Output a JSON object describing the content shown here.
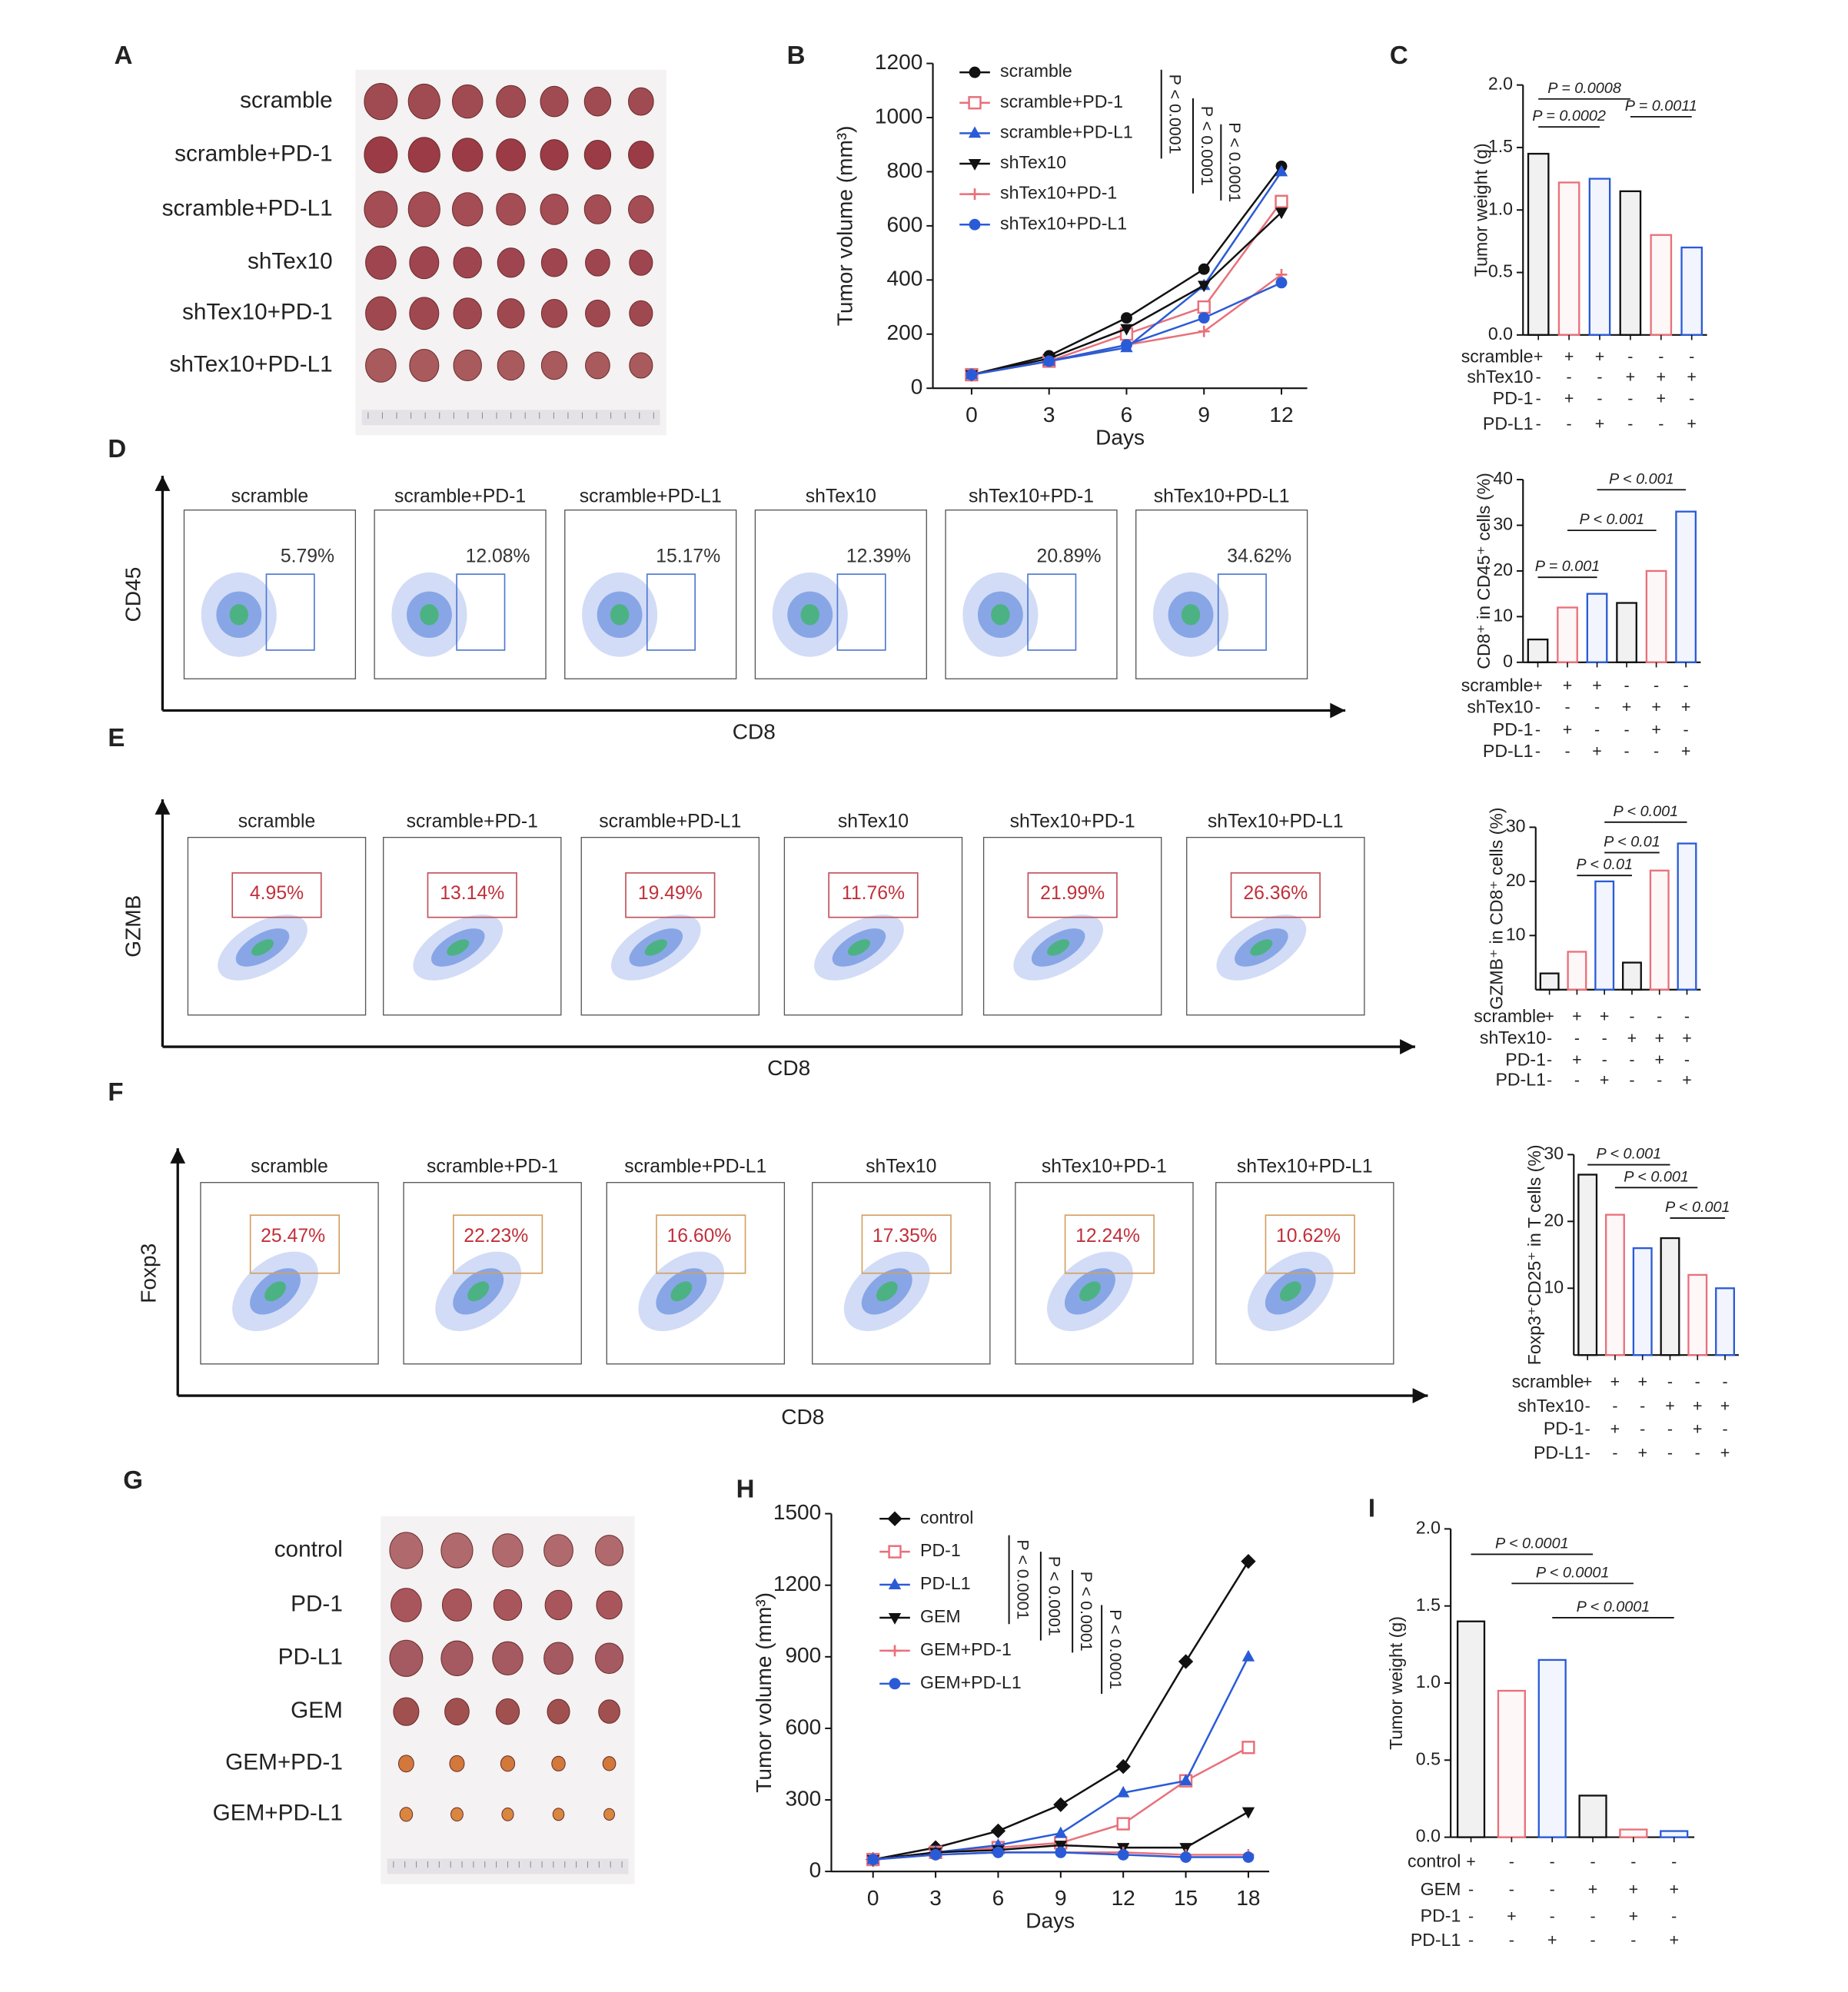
{
  "panel_labels": [
    "A",
    "B",
    "C",
    "D",
    "E",
    "F",
    "G",
    "H",
    "I"
  ],
  "photo_a": {
    "rows": [
      "scramble",
      "scramble+PD-1",
      "scramble+PD-L1",
      "shTex10",
      "shTex10+PD-1",
      "shTex10+PD-L1"
    ]
  },
  "photo_g": {
    "rows": [
      "control",
      "PD-1",
      "PD-L1",
      "GEM",
      "GEM+PD-1",
      "GEM+PD-L1"
    ]
  },
  "flows": [
    {
      "y_label": "CD45",
      "x_label": "CD8",
      "groups": [
        "scramble",
        "scramble+PD-1",
        "scramble+PD-L1",
        "shTex10",
        "shTex10+PD-1",
        "shTex10+PD-L1"
      ],
      "percents": [
        "5.79%",
        "12.08%",
        "15.17%",
        "12.39%",
        "20.89%",
        "34.62%"
      ]
    },
    {
      "y_label": "GZMB",
      "x_label": "CD8",
      "groups": [
        "scramble",
        "scramble+PD-1",
        "scramble+PD-L1",
        "shTex10",
        "shTex10+PD-1",
        "shTex10+PD-L1"
      ],
      "percents": [
        "4.95%",
        "13.14%",
        "19.49%",
        "11.76%",
        "21.99%",
        "26.36%"
      ]
    },
    {
      "y_label": "Foxp3",
      "x_label": "CD8",
      "groups": [
        "scramble",
        "scramble+PD-1",
        "scramble+PD-L1",
        "shTex10",
        "shTex10+PD-1",
        "shTex10+PD-L1"
      ],
      "percents": [
        "25.47%",
        "22.23%",
        "16.60%",
        "17.35%",
        "12.24%",
        "10.62%"
      ]
    }
  ],
  "chart_data": [
    {
      "type": "line",
      "x_label": "Days",
      "y_label": "Tumor volume (mm³)",
      "x": [
        0,
        3,
        6,
        9,
        12
      ],
      "xlim": [
        -1.5,
        13
      ],
      "xticks": [
        0,
        3,
        6,
        9,
        12
      ],
      "ylim": [
        0,
        1200
      ],
      "yticks": [
        0,
        200,
        400,
        600,
        800,
        1000,
        1200
      ],
      "series": [
        {
          "name": "scramble",
          "color": "#111111",
          "marker": "circle",
          "values": [
            50,
            120,
            260,
            440,
            820
          ]
        },
        {
          "name": "scramble+PD-1",
          "color": "#e8707a",
          "marker": "square",
          "values": [
            50,
            100,
            200,
            300,
            690
          ]
        },
        {
          "name": "scramble+PD-L1",
          "color": "#2a5bd7",
          "marker": "triangle",
          "values": [
            50,
            100,
            150,
            380,
            800
          ]
        },
        {
          "name": "shTex10",
          "color": "#111111",
          "marker": "down-triangle",
          "values": [
            50,
            110,
            220,
            380,
            650
          ]
        },
        {
          "name": "shTex10+PD-1",
          "color": "#e8707a",
          "marker": "plus",
          "values": [
            50,
            100,
            160,
            210,
            420
          ]
        },
        {
          "name": "shTex10+PD-L1",
          "color": "#2a5bd7",
          "marker": "circle",
          "values": [
            50,
            100,
            160,
            260,
            390
          ]
        }
      ],
      "annotations": [
        "P < 0.0001",
        "P < 0.0001",
        "P < 0.0001"
      ]
    },
    {
      "type": "bar",
      "y_label": "Tumor weight (g)",
      "categories": [
        null,
        null,
        null,
        null,
        null,
        null
      ],
      "values": [
        1.45,
        1.22,
        1.25,
        1.15,
        0.8,
        0.7
      ],
      "colors": [
        "#111111",
        "#e8707a",
        "#2a5bd7",
        "#111111",
        "#e8707a",
        "#2a5bd7"
      ],
      "ylim": [
        0,
        2
      ],
      "yticks": [
        {
          "value": 0,
          "label": "0.0"
        },
        0.5,
        {
          "value": 1,
          "label": "1.0"
        },
        1.5,
        {
          "value": 2,
          "label": "2.0"
        }
      ],
      "annotations": [
        "P = 0.0008",
        "P = 0.0002",
        "P = 0.0011"
      ],
      "conditions": [
        {
          "label": "scramble",
          "signs": [
            "+",
            "+",
            "+",
            "-",
            "-",
            "-"
          ]
        },
        {
          "label": "shTex10",
          "signs": [
            "-",
            "-",
            "-",
            "+",
            "+",
            "+"
          ]
        },
        {
          "label": "PD-1",
          "signs": [
            "-",
            "+",
            "-",
            "-",
            "+",
            "-"
          ]
        },
        {
          "label": "PD-L1",
          "signs": [
            "-",
            "-",
            "+",
            "-",
            "-",
            "+"
          ]
        }
      ]
    },
    {
      "type": "bar",
      "y_label": "CD8⁺ in CD45⁺ cells (%)",
      "categories": [
        null,
        null,
        null,
        null,
        null,
        null
      ],
      "values": [
        5,
        12,
        15,
        13,
        20,
        33
      ],
      "colors": [
        "#111111",
        "#e8707a",
        "#2a5bd7",
        "#111111",
        "#e8707a",
        "#2a5bd7"
      ],
      "ylim": [
        0,
        40
      ],
      "yticks": [
        0,
        10,
        20,
        30,
        40
      ],
      "annotations": [
        "P = 0.001",
        "P < 0.001",
        "P < 0.001"
      ],
      "conditions": [
        {
          "label": "scramble",
          "signs": [
            "+",
            "+",
            "+",
            "-",
            "-",
            "-"
          ]
        },
        {
          "label": "shTex10",
          "signs": [
            "-",
            "-",
            "-",
            "+",
            "+",
            "+"
          ]
        },
        {
          "label": "PD-1",
          "signs": [
            "-",
            "+",
            "-",
            "-",
            "+",
            "-"
          ]
        },
        {
          "label": "PD-L1",
          "signs": [
            "-",
            "-",
            "+",
            "-",
            "-",
            "+"
          ]
        }
      ]
    },
    {
      "type": "bar",
      "y_label": "GZMB⁺ in CD8⁺ cells (%)",
      "categories": [
        null,
        null,
        null,
        null,
        null,
        null
      ],
      "values": [
        3,
        7,
        20,
        5,
        22,
        27
      ],
      "colors": [
        "#111111",
        "#e8707a",
        "#2a5bd7",
        "#111111",
        "#e8707a",
        "#2a5bd7"
      ],
      "ylim": [
        0,
        30
      ],
      "yticks": [
        10,
        20,
        30
      ],
      "annotations": [
        "P < 0.01",
        "P < 0.01",
        "P < 0.001"
      ],
      "conditions": [
        {
          "label": "scramble",
          "signs": [
            "+",
            "+",
            "+",
            "-",
            "-",
            "-"
          ]
        },
        {
          "label": "shTex10",
          "signs": [
            "-",
            "-",
            "-",
            "+",
            "+",
            "+"
          ]
        },
        {
          "label": "PD-1",
          "signs": [
            "-",
            "+",
            "-",
            "-",
            "+",
            "-"
          ]
        },
        {
          "label": "PD-L1",
          "signs": [
            "-",
            "-",
            "+",
            "-",
            "-",
            "+"
          ]
        }
      ]
    },
    {
      "type": "bar",
      "y_label": "Foxp3⁺CD25⁺ in T cells (%)",
      "categories": [
        null,
        null,
        null,
        null,
        null,
        null
      ],
      "values": [
        27,
        21,
        16,
        17.5,
        12,
        10
      ],
      "colors": [
        "#111111",
        "#e8707a",
        "#2a5bd7",
        "#111111",
        "#e8707a",
        "#2a5bd7"
      ],
      "ylim": [
        0,
        30
      ],
      "yticks": [
        10,
        20,
        30
      ],
      "annotations": [
        "P < 0.001",
        "P < 0.001",
        "P < 0.001"
      ],
      "conditions": [
        {
          "label": "scramble",
          "signs": [
            "+",
            "+",
            "+",
            "-",
            "-",
            "-"
          ]
        },
        {
          "label": "shTex10",
          "signs": [
            "-",
            "-",
            "-",
            "+",
            "+",
            "+"
          ]
        },
        {
          "label": "PD-1",
          "signs": [
            "-",
            "+",
            "-",
            "-",
            "+",
            "-"
          ]
        },
        {
          "label": "PD-L1",
          "signs": [
            "-",
            "-",
            "+",
            "-",
            "-",
            "+"
          ]
        }
      ]
    },
    {
      "type": "line",
      "x_label": "Days",
      "y_label": "Tumor volume (mm³)",
      "x": [
        0,
        3,
        6,
        9,
        12,
        15,
        18
      ],
      "xlim": [
        -2,
        19
      ],
      "xticks": [
        0,
        3,
        6,
        9,
        12,
        15,
        18
      ],
      "ylim": [
        0,
        1500
      ],
      "yticks": [
        0,
        300,
        600,
        900,
        1200,
        1500
      ],
      "series": [
        {
          "name": "control",
          "color": "#111111",
          "marker": "diamond",
          "values": [
            50,
            100,
            170,
            280,
            440,
            880,
            1300
          ]
        },
        {
          "name": "PD-1",
          "color": "#e8707a",
          "marker": "square",
          "values": [
            50,
            80,
            100,
            120,
            200,
            380,
            520
          ]
        },
        {
          "name": "PD-L1",
          "color": "#2a5bd7",
          "marker": "triangle",
          "values": [
            50,
            80,
            110,
            160,
            330,
            380,
            900
          ]
        },
        {
          "name": "GEM",
          "color": "#111111",
          "marker": "down-triangle",
          "values": [
            50,
            80,
            90,
            110,
            100,
            100,
            250
          ]
        },
        {
          "name": "GEM+PD-1",
          "color": "#e8707a",
          "marker": "plus",
          "values": [
            50,
            70,
            80,
            80,
            80,
            70,
            70
          ]
        },
        {
          "name": "GEM+PD-L1",
          "color": "#2a5bd7",
          "marker": "circle",
          "values": [
            50,
            70,
            80,
            80,
            70,
            60,
            60
          ]
        }
      ],
      "annotations": [
        "P < 0.0001",
        "P < 0.0001",
        "P < 0.0001",
        "P < 0.0001"
      ]
    },
    {
      "type": "bar",
      "y_label": "Tumor weight (g)",
      "categories": [
        null,
        null,
        null,
        null,
        null,
        null
      ],
      "values": [
        1.4,
        0.95,
        1.15,
        0.27,
        0.05,
        0.04
      ],
      "colors": [
        "#111111",
        "#e8707a",
        "#2a5bd7",
        "#111111",
        "#e8707a",
        "#2a5bd7"
      ],
      "ylim": [
        0,
        2
      ],
      "yticks": [
        {
          "value": 0,
          "label": "0.0"
        },
        0.5,
        {
          "value": 1,
          "label": "1.0"
        },
        1.5,
        {
          "value": 2,
          "label": "2.0"
        }
      ],
      "annotations": [
        "P < 0.0001",
        "P < 0.0001",
        "P < 0.0001"
      ],
      "conditions": [
        {
          "label": "control",
          "signs": [
            "+",
            "-",
            "-",
            "-",
            "-",
            "-"
          ]
        },
        {
          "label": "GEM",
          "signs": [
            "-",
            "-",
            "-",
            "+",
            "+",
            "+"
          ]
        },
        {
          "label": "PD-1",
          "signs": [
            "-",
            "+",
            "-",
            "-",
            "+",
            "-"
          ]
        },
        {
          "label": "PD-L1",
          "signs": [
            "-",
            "-",
            "+",
            "-",
            "-",
            "+"
          ]
        }
      ]
    }
  ]
}
